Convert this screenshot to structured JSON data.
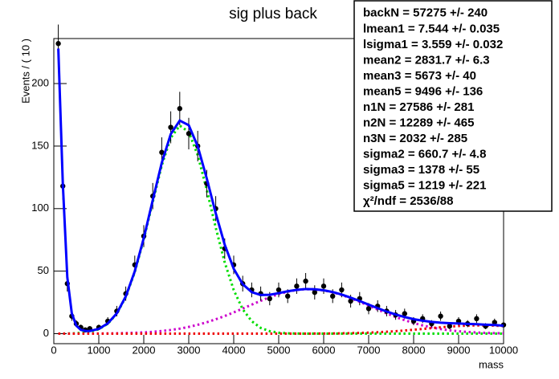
{
  "chart_data": {
    "type": "scatter",
    "title": "sig plus back",
    "y_label": "Events / ( 10 )",
    "x_label": "mass",
    "xlim": [
      0,
      10000
    ],
    "ylim": [
      -8,
      236
    ],
    "xticks": [
      0,
      1000,
      2000,
      3000,
      4000,
      5000,
      6000,
      7000,
      8000,
      9000,
      10000
    ],
    "yticks": [
      0,
      50,
      100,
      150,
      200
    ],
    "x": [
      100,
      200,
      300,
      400,
      500,
      600,
      700,
      800,
      1000,
      1200,
      1400,
      1600,
      1800,
      2000,
      2200,
      2400,
      2600,
      2800,
      3000,
      3200,
      3400,
      3600,
      3800,
      4000,
      4200,
      4400,
      4600,
      4800,
      5000,
      5200,
      5400,
      5600,
      5800,
      6000,
      6200,
      6400,
      6600,
      6800,
      7000,
      7200,
      7400,
      7600,
      7800,
      8000,
      8200,
      8400,
      8600,
      8800,
      9000,
      9200,
      9400,
      9600,
      9800,
      10000
    ],
    "points": {
      "color": "#000000",
      "values": [
        232,
        118,
        40,
        14,
        8,
        5,
        3,
        4,
        5,
        10,
        18,
        32,
        55,
        78,
        110,
        145,
        165,
        180,
        160,
        150,
        120,
        100,
        68,
        55,
        40,
        35,
        32,
        28,
        35,
        30,
        38,
        42,
        33,
        38,
        30,
        35,
        26,
        28,
        20,
        22,
        18,
        15,
        16,
        10,
        12,
        8,
        14,
        6,
        10,
        8,
        12,
        6,
        9,
        7
      ],
      "errors": [
        15.2,
        10.9,
        6.3,
        3.7,
        2.8,
        2.2,
        1.7,
        2,
        2.2,
        3.2,
        4.2,
        5.7,
        7.4,
        8.8,
        10.5,
        12,
        12.8,
        13.4,
        12.6,
        12.2,
        11,
        10,
        8.2,
        7.4,
        6.3,
        5.9,
        5.7,
        5.3,
        5.9,
        5.5,
        6.2,
        6.5,
        5.7,
        6.2,
        5.5,
        5.9,
        5.1,
        5.3,
        4.5,
        4.7,
        4.2,
        3.9,
        4,
        3.2,
        3.5,
        2.8,
        3.7,
        2.4,
        3.2,
        2.8,
        3.5,
        2.4,
        3,
        2.6
      ]
    },
    "series": [
      {
        "color": "#0000ff",
        "style": "solid",
        "values": [
          228,
          120.1,
          45.1,
          16.2,
          6.4,
          3.1,
          2.2,
          2.1,
          3.8,
          8.2,
          16.2,
          29.8,
          49.9,
          76.4,
          106.8,
          136.6,
          159.6,
          170.4,
          166.7,
          149.8,
          124.2,
          96.3,
          71.1,
          51.9,
          39.6,
          33.2,
          30.9,
          31.1,
          32.4,
          33.9,
          35,
          35.7,
          35.5,
          34.7,
          33.3,
          31.3,
          28.8,
          26.1,
          23.2,
          20.4,
          17.7,
          15.3,
          13.3,
          11.6,
          10.4,
          9.4,
          8.8,
          8.4,
          8.1,
          7.8,
          7.6,
          7.2,
          6.9,
          6.4
        ]
      },
      {
        "color": "#00dd00",
        "style": "dotted",
        "values": [
          0.04,
          0.06,
          0.1,
          0.19,
          0.33,
          0.55,
          0.9,
          1.47,
          3.5,
          7.9,
          15.9,
          29.3,
          49.2,
          75.4,
          105.3,
          134.5,
          156.6,
          166.4,
          161.3,
          142.7,
          115.1,
          84.8,
          57,
          34.9,
          19.5,
          10,
          4.6,
          2,
          0.77,
          0.27,
          0.09,
          0.03,
          0.01,
          0,
          0,
          0,
          0,
          0,
          0,
          0,
          0,
          0,
          0,
          0,
          0,
          0,
          0,
          0,
          0,
          0,
          0,
          0,
          0,
          0
        ]
      },
      {
        "color": "#cc00cc",
        "style": "dotted",
        "values": [
          0.01,
          0.01,
          0.02,
          0.02,
          0.03,
          0.04,
          0.05,
          0.07,
          0.11,
          0.18,
          0.29,
          0.45,
          0.69,
          1.02,
          1.48,
          2.11,
          2.95,
          4,
          5.4,
          7.1,
          9.1,
          11.5,
          14.1,
          17,
          20.1,
          23.2,
          26.3,
          29.1,
          31.6,
          33.6,
          34.9,
          35.6,
          35.4,
          34.6,
          33.1,
          31,
          28.4,
          25.5,
          22.4,
          19.3,
          16.2,
          13.3,
          10.8,
          8.5,
          6.6,
          5,
          3.7,
          2.7,
          1.93,
          1.35,
          0.92,
          0.61,
          0.4,
          0.26
        ]
      },
      {
        "color": "#ee0000",
        "style": "dotted",
        "values": [
          0,
          0,
          0,
          0,
          0,
          0,
          0,
          0,
          0,
          0,
          0,
          0,
          0,
          0,
          0,
          0,
          0,
          0,
          0,
          0,
          0,
          0,
          0,
          0,
          0,
          0,
          0,
          0,
          0.01,
          0.02,
          0.03,
          0.04,
          0.07,
          0.11,
          0.17,
          0.27,
          0.4,
          0.57,
          0.81,
          1.13,
          1.52,
          1.98,
          2.53,
          3.13,
          3.78,
          4.44,
          5.08,
          5.65,
          6.12,
          6.46,
          6.63,
          6.63,
          6.45,
          6.11
        ]
      }
    ],
    "stats": [
      "backN =  57275 +/- 240",
      "lmean1 =  7.544 +/- 0.035",
      "lsigma1 =  3.559 +/- 0.032",
      "mean2 =  2831.7 +/- 6.3",
      "mean3 =  5673 +/- 40",
      "mean5 =  9496 +/- 136",
      "n1N =  27586 +/- 281",
      "n2N =  12289 +/- 465",
      "n3N =  2032 +/- 285",
      "sigma2 =  660.7 +/- 4.8",
      "sigma3 =  1378 +/- 55",
      "sigma5 =  1219 +/- 221",
      "χ²/ndf = 2536/88"
    ]
  }
}
